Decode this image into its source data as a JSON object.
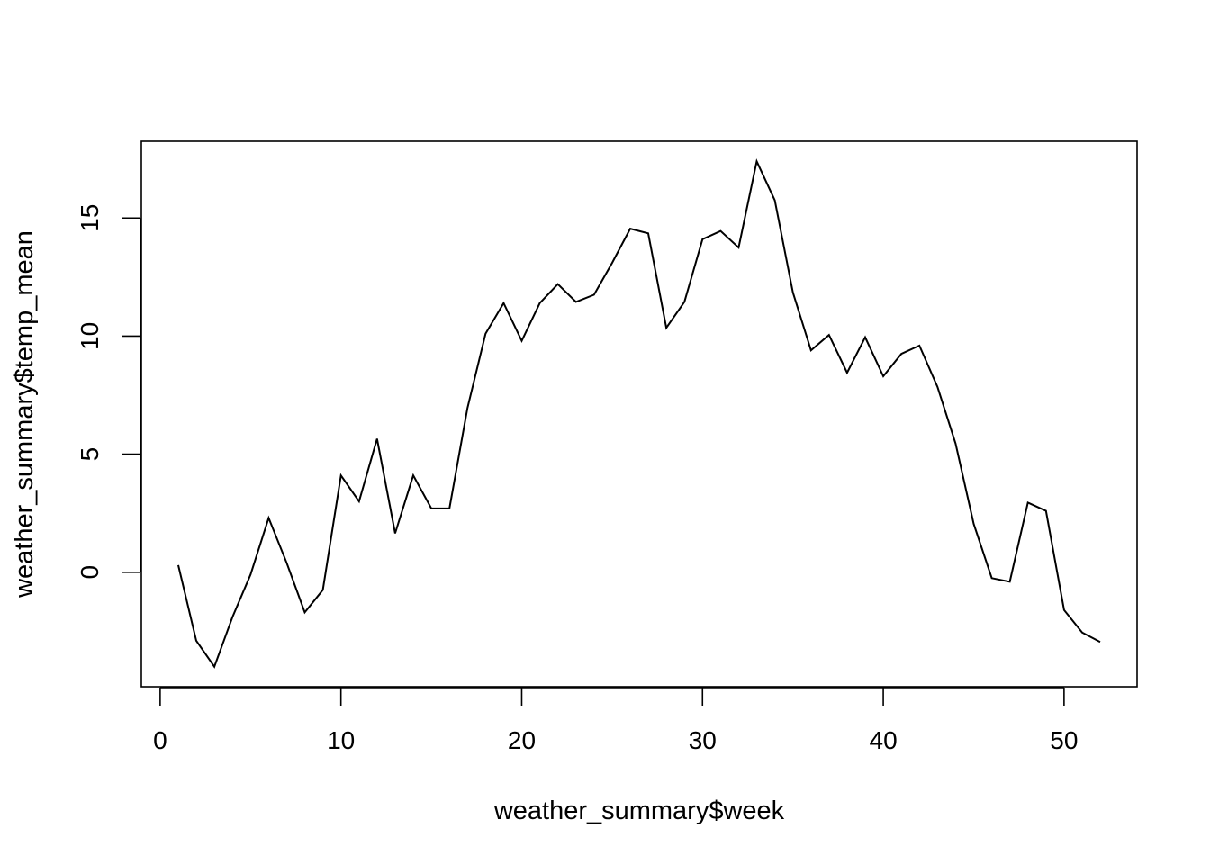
{
  "chart_data": {
    "type": "line",
    "title": "",
    "xlabel": "weather_summary$week",
    "ylabel": "weather_summary$temp_mean",
    "xlim": [
      -1.04,
      54.04
    ],
    "ylim": [
      -4.85,
      18.25
    ],
    "xticks": [
      0,
      10,
      20,
      30,
      40,
      50
    ],
    "yticks": [
      0,
      5,
      10,
      15
    ],
    "grid": false,
    "legend": "none",
    "line_color": "#000000",
    "x": [
      1,
      2,
      3,
      4,
      5,
      6,
      7,
      8,
      9,
      10,
      11,
      12,
      13,
      14,
      15,
      16,
      17,
      18,
      19,
      20,
      21,
      22,
      23,
      24,
      25,
      26,
      27,
      28,
      29,
      30,
      31,
      32,
      33,
      34,
      35,
      36,
      37,
      38,
      39,
      40,
      41,
      42,
      43,
      44,
      45,
      46,
      47,
      48,
      49,
      50,
      51,
      52
    ],
    "y": [
      0.3,
      -2.9,
      -4.0,
      -1.9,
      -0.1,
      2.3,
      0.4,
      -1.7,
      -0.75,
      4.1,
      3.0,
      5.65,
      1.65,
      4.1,
      2.7,
      2.7,
      6.95,
      10.1,
      11.4,
      9.8,
      11.4,
      12.2,
      11.45,
      11.75,
      13.1,
      14.55,
      14.35,
      10.35,
      11.45,
      14.1,
      14.45,
      13.75,
      17.4,
      15.75,
      11.85,
      9.4,
      10.05,
      8.45,
      9.95,
      8.3,
      9.25,
      9.6,
      7.85,
      5.45,
      2.05,
      -0.25,
      -0.4,
      2.95,
      2.6,
      -1.6,
      -2.55,
      -2.95
    ]
  }
}
